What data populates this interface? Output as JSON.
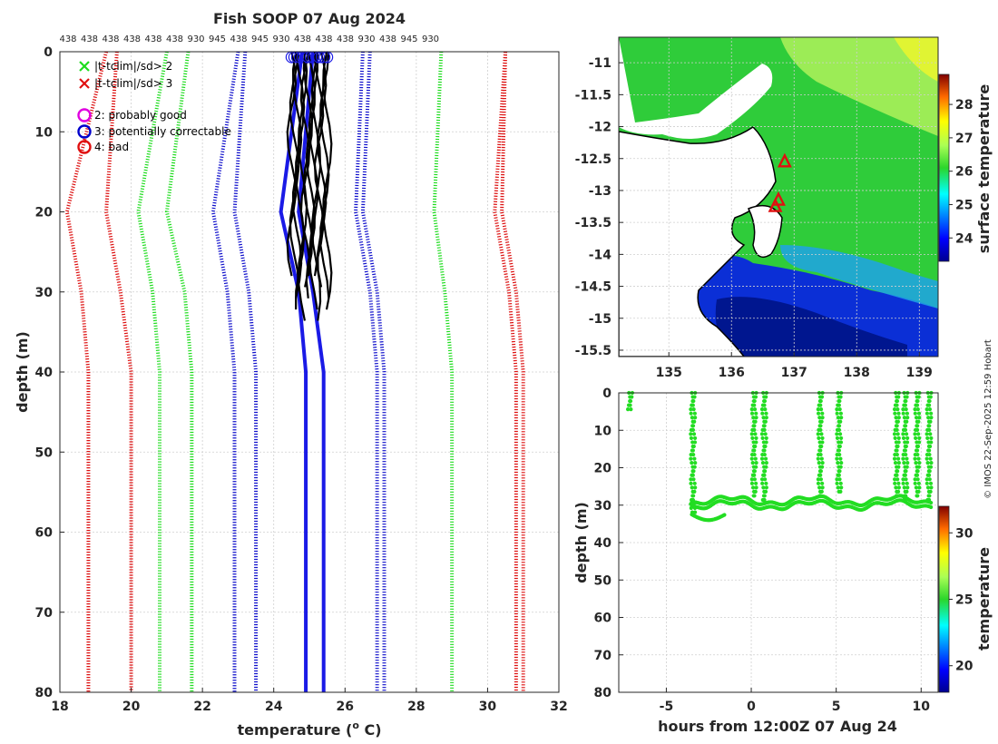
{
  "chart_data": [
    {
      "type": "line",
      "panel": "profile",
      "title": "Fish SOOP 07 Aug 2024",
      "xlabel": "temperature (",
      "xlabel_sup": "o",
      "xlabel_tail": " C)",
      "ylabel": "depth (m)",
      "xlim": [
        18,
        32
      ],
      "ylim": [
        0,
        80
      ],
      "xticks": [
        18,
        20,
        22,
        24,
        26,
        28,
        30,
        32
      ],
      "yticks": [
        0,
        10,
        20,
        30,
        40,
        50,
        60,
        70,
        80
      ],
      "top_labels": [
        "438",
        "438",
        "438",
        "438",
        "438",
        "438",
        "930",
        "945",
        "438",
        "945",
        "930",
        "438",
        "438",
        "438",
        "930",
        "438",
        "945",
        "930"
      ],
      "legend": [
        {
          "marker": "x",
          "color": "#1ddc1d",
          "label": "|t-tclim|/sd> 2"
        },
        {
          "marker": "x",
          "color": "#e01010",
          "label": "|t-tclim|/sd> 3"
        },
        {
          "marker": "o",
          "color": "#e000e0",
          "label": "2: probably good"
        },
        {
          "marker": "o",
          "color": "#0000cc",
          "label": "3: potentially correctable"
        },
        {
          "marker": "o",
          "color": "#e01010",
          "label": "4: bad"
        }
      ],
      "series": [
        {
          "name": "clim -3sd left",
          "color": "#dd1111",
          "style": "dotted",
          "x": [
            19.3,
            18.2,
            18.6,
            18.8,
            18.8
          ],
          "depth": [
            0,
            20,
            30,
            40,
            80
          ]
        },
        {
          "name": "clim -3sd left 2",
          "color": "#dd1111",
          "style": "dotted",
          "x": [
            19.6,
            19.3,
            19.7,
            20.0,
            20.0
          ],
          "depth": [
            0,
            20,
            30,
            40,
            80
          ]
        },
        {
          "name": "clim -2sd left",
          "color": "#22dd22",
          "style": "dotted",
          "x": [
            21.0,
            20.2,
            20.6,
            20.8,
            20.8
          ],
          "depth": [
            0,
            20,
            30,
            40,
            80
          ]
        },
        {
          "name": "clim -2sd left 2",
          "color": "#22dd22",
          "style": "dotted",
          "x": [
            21.6,
            21.0,
            21.5,
            21.7,
            21.7
          ],
          "depth": [
            0,
            20,
            30,
            40,
            80
          ]
        },
        {
          "name": "clim -1sd left",
          "color": "#1111cc",
          "style": "dotted",
          "x": [
            23.0,
            22.3,
            22.7,
            22.9,
            22.9
          ],
          "depth": [
            0,
            20,
            30,
            40,
            80
          ]
        },
        {
          "name": "clim -1sd left 2",
          "color": "#1111cc",
          "style": "dotted",
          "x": [
            23.2,
            22.9,
            23.3,
            23.5,
            23.5
          ],
          "depth": [
            0,
            20,
            30,
            40,
            80
          ]
        },
        {
          "name": "clim +1sd right",
          "color": "#1111cc",
          "style": "dotted",
          "x": [
            26.5,
            26.3,
            26.7,
            26.9,
            26.9
          ],
          "depth": [
            0,
            20,
            30,
            40,
            80
          ]
        },
        {
          "name": "clim +1sd right 2",
          "color": "#1111cc",
          "style": "dotted",
          "x": [
            26.7,
            26.5,
            26.9,
            27.1,
            27.1
          ],
          "depth": [
            0,
            20,
            30,
            40,
            80
          ]
        },
        {
          "name": "clim +2sd right",
          "color": "#22dd22",
          "style": "dotted",
          "x": [
            28.7,
            28.5,
            28.8,
            29.0,
            29.0
          ],
          "depth": [
            0,
            20,
            30,
            40,
            80
          ]
        },
        {
          "name": "clim +3sd right",
          "color": "#dd1111",
          "style": "dotted",
          "x": [
            30.5,
            30.2,
            30.6,
            30.8,
            30.8
          ],
          "depth": [
            0,
            20,
            30,
            40,
            80
          ]
        },
        {
          "name": "clim +3sd right 2",
          "color": "#dd1111",
          "style": "dotted",
          "x": [
            30.5,
            30.4,
            30.8,
            31.0,
            31.0
          ],
          "depth": [
            0,
            20,
            30,
            40,
            80
          ]
        },
        {
          "name": "climatology mean",
          "color": "#1a1ae6",
          "style": "solid",
          "x": [
            24.8,
            24.2,
            24.7,
            24.9,
            24.9
          ],
          "depth": [
            0,
            20,
            30,
            40,
            80
          ]
        },
        {
          "name": "climatology mean 2",
          "color": "#1a1ae6",
          "style": "solid",
          "x": [
            25.1,
            24.7,
            25.1,
            25.4,
            25.4
          ],
          "depth": [
            0,
            20,
            30,
            40,
            80
          ]
        }
      ],
      "profiles_temperature_range": [
        24.5,
        25.5
      ],
      "profiles_depth_range": [
        0,
        35
      ]
    },
    {
      "type": "heatmap",
      "panel": "map",
      "colorbar_label": "surface temperature",
      "colorbar_ticks": [
        24,
        25,
        26,
        27,
        28
      ],
      "colorbar_range": [
        23.3,
        28.9
      ],
      "xlim": [
        134.2,
        139.3
      ],
      "ylim": [
        -15.6,
        -10.6
      ],
      "xticks": [
        135,
        136,
        137,
        138,
        139
      ],
      "yticks": [
        -11,
        -11.5,
        -12,
        -12.5,
        -13,
        -13.5,
        -14,
        -14.5,
        -15,
        -15.5
      ],
      "markers": [
        {
          "lon": 136.85,
          "lat": -12.55,
          "color": "#e01010"
        },
        {
          "lon": 136.75,
          "lat": -13.15,
          "color": "#e01010"
        },
        {
          "lon": 136.7,
          "lat": -13.25,
          "color": "#e01010"
        }
      ]
    },
    {
      "type": "scatter",
      "panel": "depth-time",
      "xlabel": "hours from 12:00Z 07 Aug 24",
      "ylabel": "depth (m)",
      "colorbar_label": "temperature",
      "colorbar_ticks": [
        20,
        25,
        30
      ],
      "colorbar_range": [
        18,
        32
      ],
      "xlim": [
        -7.8,
        11
      ],
      "ylim": [
        0,
        80
      ],
      "xticks": [
        -5,
        0,
        5,
        10
      ],
      "yticks": [
        0,
        10,
        20,
        30,
        40,
        50,
        60,
        70,
        80
      ],
      "point_color": "#22dd22",
      "casts": [
        {
          "x": -7.2,
          "max_depth": 5
        },
        {
          "x": -3.5,
          "max_depth": 32
        },
        {
          "x": 0.1,
          "max_depth": 28
        },
        {
          "x": 0.7,
          "max_depth": 29
        },
        {
          "x": 4.0,
          "max_depth": 28
        },
        {
          "x": 5.1,
          "max_depth": 27
        },
        {
          "x": 8.5,
          "max_depth": 28
        },
        {
          "x": 9.0,
          "max_depth": 29
        },
        {
          "x": 9.7,
          "max_depth": 28
        },
        {
          "x": 10.4,
          "max_depth": 29
        }
      ]
    }
  ],
  "footer": {
    "credit": "© IMOS 22-Sep-2025 12:59 Hobart"
  }
}
